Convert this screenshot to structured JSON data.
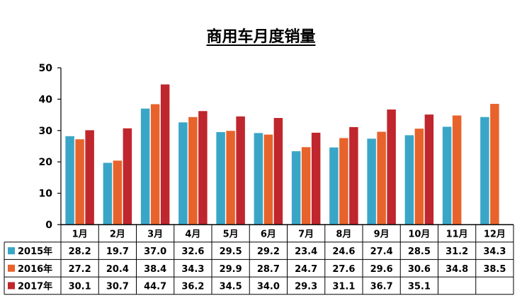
{
  "chart_data": {
    "type": "bar",
    "title": "商用车月度销量",
    "categories": [
      "1月",
      "2月",
      "3月",
      "4月",
      "5月",
      "6月",
      "7月",
      "8月",
      "9月",
      "10月",
      "11月",
      "12月"
    ],
    "series": [
      {
        "name": "2015年",
        "color": "#3aa6c7",
        "values": [
          28.2,
          19.7,
          37.0,
          32.6,
          29.5,
          29.2,
          23.4,
          24.6,
          27.4,
          28.5,
          31.2,
          34.3
        ],
        "labels": [
          "28.2",
          "19.7",
          "37.0",
          "32.6",
          "29.5",
          "29.2",
          "23.4",
          "24.6",
          "27.4",
          "28.5",
          "31.2",
          "34.3"
        ]
      },
      {
        "name": "2016年",
        "color": "#e8632b",
        "values": [
          27.2,
          20.4,
          38.4,
          34.3,
          29.9,
          28.7,
          24.7,
          27.6,
          29.6,
          30.6,
          34.8,
          38.5
        ],
        "labels": [
          "27.2",
          "20.4",
          "38.4",
          "34.3",
          "29.9",
          "28.7",
          "24.7",
          "27.6",
          "29.6",
          "30.6",
          "34.8",
          "38.5"
        ]
      },
      {
        "name": "2017年",
        "color": "#c0262d",
        "values": [
          30.1,
          30.7,
          44.7,
          36.2,
          34.5,
          34.0,
          29.3,
          31.1,
          36.7,
          35.1,
          null,
          null
        ],
        "labels": [
          "30.1",
          "30.7",
          "44.7",
          "36.2",
          "34.5",
          "34.0",
          "29.3",
          "31.1",
          "36.7",
          "35.1",
          "",
          ""
        ]
      }
    ],
    "ylim": [
      0,
      50
    ],
    "yticks": [
      "0",
      "10",
      "20",
      "30",
      "40",
      "50"
    ],
    "grid": false,
    "legend": "data-table"
  }
}
